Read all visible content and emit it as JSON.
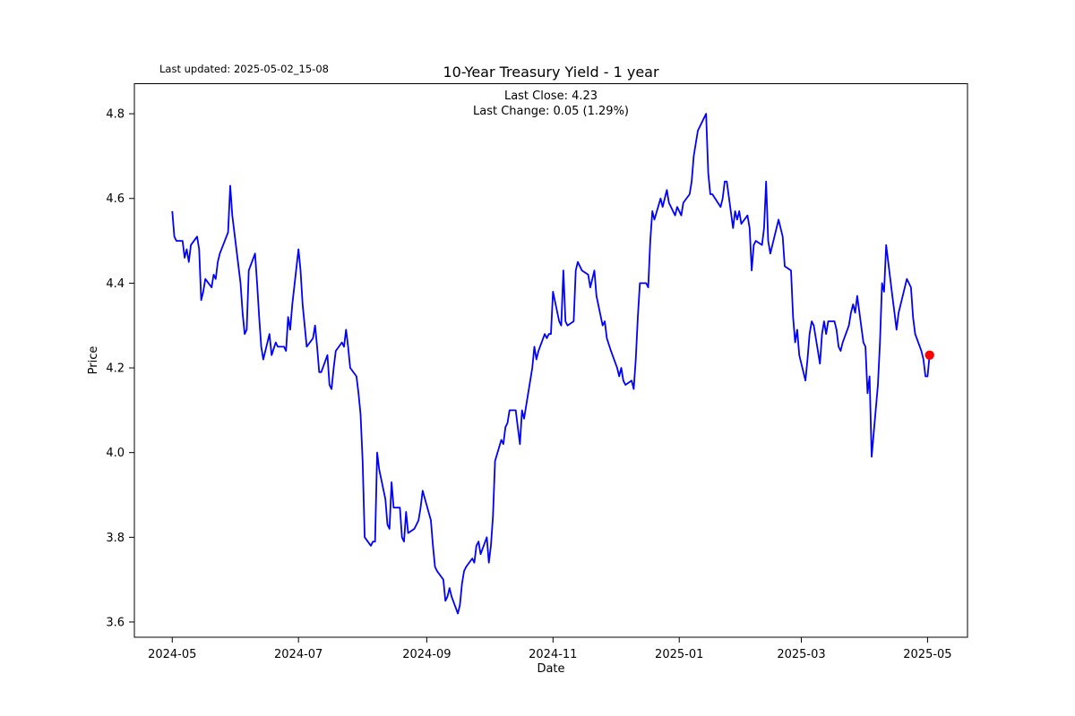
{
  "header": {
    "last_updated": "Last updated: 2025-05-02_15-08",
    "title": "10-Year Treasury Yield - 1 year",
    "subtitle_line1": "Last Close: 4.23",
    "subtitle_line2": "Last Change: 0.05 (1.29%)"
  },
  "chart_data": {
    "type": "line",
    "title": "10-Year Treasury Yield - 1 year",
    "xlabel": "Date",
    "ylabel": "Price",
    "last_close": 4.23,
    "last_change": 0.05,
    "last_change_pct": "1.29%",
    "line_color": "#0000ff",
    "marker_color": "#ff0000",
    "grid": false,
    "ylim": [
      3.564,
      4.871
    ],
    "yticks": [
      {
        "value": 3.6,
        "label": "3.6"
      },
      {
        "value": 3.8,
        "label": "3.8"
      },
      {
        "value": 4.0,
        "label": "4.0"
      },
      {
        "value": 4.2,
        "label": "4.2"
      },
      {
        "value": 4.4,
        "label": "4.4"
      },
      {
        "value": 4.6,
        "label": "4.6"
      },
      {
        "value": 4.8,
        "label": "4.8"
      }
    ],
    "xticks": [
      {
        "date": "2024-05-01",
        "label": "2024-05"
      },
      {
        "date": "2024-07-01",
        "label": "2024-07"
      },
      {
        "date": "2024-09-01",
        "label": "2024-09"
      },
      {
        "date": "2024-11-01",
        "label": "2024-11"
      },
      {
        "date": "2025-01-01",
        "label": "2025-01"
      },
      {
        "date": "2025-03-01",
        "label": "2025-03"
      },
      {
        "date": "2025-05-01",
        "label": "2025-05"
      }
    ],
    "x_start": "2024-05-01",
    "x_end": "2025-05-02",
    "x_margin_frac": 0.05,
    "series": [
      {
        "name": "10-Year Treasury Yield",
        "dates": [
          "2024-05-01",
          "2024-05-02",
          "2024-05-03",
          "2024-05-06",
          "2024-05-07",
          "2024-05-08",
          "2024-05-09",
          "2024-05-10",
          "2024-05-13",
          "2024-05-14",
          "2024-05-15",
          "2024-05-16",
          "2024-05-17",
          "2024-05-20",
          "2024-05-21",
          "2024-05-22",
          "2024-05-23",
          "2024-05-24",
          "2024-05-28",
          "2024-05-29",
          "2024-05-30",
          "2024-05-31",
          "2024-06-03",
          "2024-06-04",
          "2024-06-05",
          "2024-06-06",
          "2024-06-07",
          "2024-06-10",
          "2024-06-11",
          "2024-06-12",
          "2024-06-13",
          "2024-06-14",
          "2024-06-17",
          "2024-06-18",
          "2024-06-20",
          "2024-06-21",
          "2024-06-24",
          "2024-06-25",
          "2024-06-26",
          "2024-06-27",
          "2024-06-28",
          "2024-07-01",
          "2024-07-02",
          "2024-07-03",
          "2024-07-05",
          "2024-07-08",
          "2024-07-09",
          "2024-07-10",
          "2024-07-11",
          "2024-07-12",
          "2024-07-15",
          "2024-07-16",
          "2024-07-17",
          "2024-07-18",
          "2024-07-19",
          "2024-07-22",
          "2024-07-23",
          "2024-07-24",
          "2024-07-25",
          "2024-07-26",
          "2024-07-29",
          "2024-07-30",
          "2024-07-31",
          "2024-08-01",
          "2024-08-02",
          "2024-08-05",
          "2024-08-06",
          "2024-08-07",
          "2024-08-08",
          "2024-08-09",
          "2024-08-12",
          "2024-08-13",
          "2024-08-14",
          "2024-08-15",
          "2024-08-16",
          "2024-08-19",
          "2024-08-20",
          "2024-08-21",
          "2024-08-22",
          "2024-08-23",
          "2024-08-26",
          "2024-08-27",
          "2024-08-28",
          "2024-08-29",
          "2024-08-30",
          "2024-09-03",
          "2024-09-04",
          "2024-09-05",
          "2024-09-06",
          "2024-09-09",
          "2024-09-10",
          "2024-09-11",
          "2024-09-12",
          "2024-09-13",
          "2024-09-16",
          "2024-09-17",
          "2024-09-18",
          "2024-09-19",
          "2024-09-20",
          "2024-09-23",
          "2024-09-24",
          "2024-09-25",
          "2024-09-26",
          "2024-09-27",
          "2024-09-30",
          "2024-10-01",
          "2024-10-02",
          "2024-10-03",
          "2024-10-04",
          "2024-10-07",
          "2024-10-08",
          "2024-10-09",
          "2024-10-10",
          "2024-10-11",
          "2024-10-14",
          "2024-10-15",
          "2024-10-16",
          "2024-10-17",
          "2024-10-18",
          "2024-10-21",
          "2024-10-22",
          "2024-10-23",
          "2024-10-24",
          "2024-10-25",
          "2024-10-28",
          "2024-10-29",
          "2024-10-30",
          "2024-10-31",
          "2024-11-01",
          "2024-11-04",
          "2024-11-05",
          "2024-11-06",
          "2024-11-07",
          "2024-11-08",
          "2024-11-11",
          "2024-11-12",
          "2024-11-13",
          "2024-11-14",
          "2024-11-15",
          "2024-11-18",
          "2024-11-19",
          "2024-11-20",
          "2024-11-21",
          "2024-11-22",
          "2024-11-25",
          "2024-11-26",
          "2024-11-27",
          "2024-11-29",
          "2024-12-02",
          "2024-12-03",
          "2024-12-04",
          "2024-12-05",
          "2024-12-06",
          "2024-12-09",
          "2024-12-10",
          "2024-12-11",
          "2024-12-12",
          "2024-12-13",
          "2024-12-16",
          "2024-12-17",
          "2024-12-18",
          "2024-12-19",
          "2024-12-20",
          "2024-12-23",
          "2024-12-24",
          "2024-12-26",
          "2024-12-27",
          "2024-12-30",
          "2024-12-31",
          "2025-01-02",
          "2025-01-03",
          "2025-01-06",
          "2025-01-07",
          "2025-01-08",
          "2025-01-10",
          "2025-01-13",
          "2025-01-14",
          "2025-01-15",
          "2025-01-16",
          "2025-01-17",
          "2025-01-21",
          "2025-01-22",
          "2025-01-23",
          "2025-01-24",
          "2025-01-27",
          "2025-01-28",
          "2025-01-29",
          "2025-01-30",
          "2025-01-31",
          "2025-02-03",
          "2025-02-04",
          "2025-02-05",
          "2025-02-06",
          "2025-02-07",
          "2025-02-10",
          "2025-02-11",
          "2025-02-12",
          "2025-02-13",
          "2025-02-14",
          "2025-02-18",
          "2025-02-19",
          "2025-02-20",
          "2025-02-21",
          "2025-02-24",
          "2025-02-25",
          "2025-02-26",
          "2025-02-27",
          "2025-02-28",
          "2025-03-03",
          "2025-03-04",
          "2025-03-05",
          "2025-03-06",
          "2025-03-07",
          "2025-03-10",
          "2025-03-11",
          "2025-03-12",
          "2025-03-13",
          "2025-03-14",
          "2025-03-17",
          "2025-03-18",
          "2025-03-19",
          "2025-03-20",
          "2025-03-21",
          "2025-03-24",
          "2025-03-25",
          "2025-03-26",
          "2025-03-27",
          "2025-03-28",
          "2025-03-31",
          "2025-04-01",
          "2025-04-02",
          "2025-04-03",
          "2025-04-04",
          "2025-04-07",
          "2025-04-08",
          "2025-04-09",
          "2025-04-10",
          "2025-04-11",
          "2025-04-14",
          "2025-04-15",
          "2025-04-16",
          "2025-04-17",
          "2025-04-21",
          "2025-04-22",
          "2025-04-23",
          "2025-04-24",
          "2025-04-25",
          "2025-04-28",
          "2025-04-29",
          "2025-04-30",
          "2025-05-01",
          "2025-05-02"
        ],
        "values": [
          4.57,
          4.51,
          4.5,
          4.5,
          4.46,
          4.48,
          4.45,
          4.49,
          4.51,
          4.48,
          4.36,
          4.38,
          4.41,
          4.39,
          4.42,
          4.41,
          4.45,
          4.47,
          4.52,
          4.63,
          4.56,
          4.52,
          4.4,
          4.33,
          4.28,
          4.29,
          4.43,
          4.47,
          4.4,
          4.32,
          4.25,
          4.22,
          4.28,
          4.23,
          4.26,
          4.25,
          4.25,
          4.24,
          4.32,
          4.29,
          4.35,
          4.48,
          4.43,
          4.35,
          4.25,
          4.27,
          4.3,
          4.25,
          4.19,
          4.19,
          4.23,
          4.16,
          4.15,
          4.2,
          4.24,
          4.26,
          4.25,
          4.29,
          4.25,
          4.2,
          4.18,
          4.14,
          4.09,
          3.98,
          3.8,
          3.78,
          3.79,
          3.79,
          4.0,
          3.96,
          3.89,
          3.83,
          3.82,
          3.93,
          3.87,
          3.87,
          3.8,
          3.79,
          3.86,
          3.81,
          3.82,
          3.83,
          3.84,
          3.87,
          3.91,
          3.84,
          3.78,
          3.73,
          3.72,
          3.7,
          3.65,
          3.66,
          3.68,
          3.66,
          3.62,
          3.64,
          3.69,
          3.72,
          3.73,
          3.75,
          3.74,
          3.78,
          3.79,
          3.76,
          3.8,
          3.74,
          3.78,
          3.85,
          3.98,
          4.03,
          4.02,
          4.06,
          4.07,
          4.1,
          4.1,
          4.06,
          4.02,
          4.1,
          4.08,
          4.17,
          4.2,
          4.25,
          4.22,
          4.24,
          4.28,
          4.27,
          4.28,
          4.28,
          4.38,
          4.31,
          4.3,
          4.43,
          4.31,
          4.3,
          4.31,
          4.43,
          4.45,
          4.44,
          4.43,
          4.42,
          4.39,
          4.41,
          4.43,
          4.37,
          4.3,
          4.31,
          4.27,
          4.24,
          4.2,
          4.18,
          4.2,
          4.17,
          4.16,
          4.17,
          4.15,
          4.22,
          4.32,
          4.4,
          4.4,
          4.39,
          4.5,
          4.57,
          4.55,
          4.6,
          4.58,
          4.62,
          4.59,
          4.56,
          4.58,
          4.56,
          4.59,
          4.61,
          4.64,
          4.7,
          4.76,
          4.79,
          4.8,
          4.66,
          4.61,
          4.61,
          4.58,
          4.6,
          4.64,
          4.64,
          4.53,
          4.57,
          4.55,
          4.57,
          4.54,
          4.56,
          4.53,
          4.43,
          4.49,
          4.5,
          4.49,
          4.53,
          4.64,
          4.5,
          4.47,
          4.55,
          4.53,
          4.51,
          4.44,
          4.43,
          4.32,
          4.26,
          4.29,
          4.23,
          4.17,
          4.22,
          4.28,
          4.31,
          4.3,
          4.21,
          4.28,
          4.31,
          4.28,
          4.31,
          4.31,
          4.29,
          4.25,
          4.24,
          4.26,
          4.3,
          4.33,
          4.35,
          4.33,
          4.37,
          4.26,
          4.25,
          4.14,
          4.18,
          3.99,
          4.16,
          4.26,
          4.4,
          4.38,
          4.49,
          4.37,
          4.33,
          4.29,
          4.33,
          4.41,
          4.4,
          4.39,
          4.32,
          4.28,
          4.24,
          4.22,
          4.18,
          4.18,
          4.23
        ]
      }
    ]
  }
}
